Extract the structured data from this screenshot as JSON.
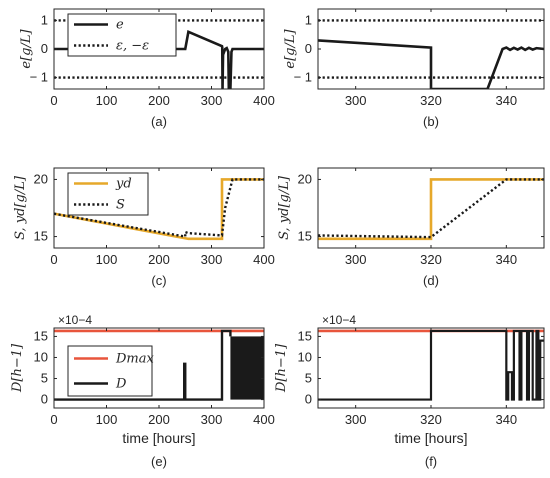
{
  "chart_data": [
    {
      "id": "a",
      "type": "line",
      "caption": "(a)",
      "ylabel": "e[g/L]",
      "xlabel": "",
      "xlim": [
        0,
        400
      ],
      "ylim": [
        -1.4,
        1.4
      ],
      "xticks": [
        0,
        100,
        200,
        300,
        400
      ],
      "yticks": [
        -1,
        0,
        1
      ],
      "legend": {
        "placement": "top-left",
        "entries": [
          "e",
          "ε, −ε"
        ]
      },
      "series": [
        {
          "name": "e",
          "style": "solid",
          "color": "#1a1a1a",
          "width": 2.6,
          "x": [
            0,
            250,
            256,
            320,
            320.5,
            321,
            322,
            326,
            329,
            332,
            333,
            334,
            336,
            338,
            340,
            400
          ],
          "y": [
            0,
            0,
            0.6,
            0.1,
            0.05,
            -1.4,
            -0.2,
            0,
            0.03,
            -0.1,
            -1.4,
            -1.4,
            -1.4,
            -0.1,
            0,
            0
          ]
        },
        {
          "name": "ε, −ε",
          "style": "dotted",
          "color": "#1a1a1a",
          "width": 2.4,
          "x": [
            0,
            400
          ],
          "y": [
            1,
            1
          ]
        },
        {
          "name": "",
          "style": "dotted",
          "color": "#1a1a1a",
          "width": 2.4,
          "x": [
            0,
            400
          ],
          "y": [
            -1,
            -1
          ]
        }
      ]
    },
    {
      "id": "b",
      "type": "line",
      "caption": "(b)",
      "ylabel": "e[g/L]",
      "xlabel": "",
      "xlim": [
        290,
        350
      ],
      "ylim": [
        -1.4,
        1.4
      ],
      "xticks": [
        300,
        320,
        340
      ],
      "yticks": [
        -1,
        0,
        1
      ],
      "series": [
        {
          "name": "e",
          "style": "solid",
          "color": "#1a1a1a",
          "width": 2.6,
          "x": [
            290,
            320,
            320,
            320.2,
            335,
            339,
            340,
            341,
            342,
            343,
            344,
            345,
            346,
            347,
            348,
            350
          ],
          "y": [
            0.3,
            0.05,
            -1.4,
            -1.4,
            -1.4,
            0,
            0.05,
            -0.03,
            0.04,
            -0.02,
            0.05,
            -0.03,
            0.04,
            -0.02,
            0.03,
            0
          ]
        },
        {
          "name": "",
          "style": "dotted",
          "color": "#1a1a1a",
          "width": 2.4,
          "x": [
            290,
            350
          ],
          "y": [
            1,
            1
          ]
        },
        {
          "name": "",
          "style": "dotted",
          "color": "#1a1a1a",
          "width": 2.4,
          "x": [
            290,
            350
          ],
          "y": [
            -1,
            -1
          ]
        }
      ]
    },
    {
      "id": "c",
      "type": "line",
      "caption": "(c)",
      "ylabel": "S, yd[g/L]",
      "xlabel": "",
      "xlim": [
        0,
        400
      ],
      "ylim": [
        14,
        21
      ],
      "xticks": [
        0,
        100,
        200,
        300,
        400
      ],
      "yticks": [
        15,
        20
      ],
      "legend": {
        "placement": "top-left",
        "entries": [
          "yd",
          "S"
        ]
      },
      "series": [
        {
          "name": "yd",
          "style": "solid",
          "color": "#e6a82a",
          "width": 2.6,
          "x": [
            0,
            256,
            320,
            320,
            400
          ],
          "y": [
            17,
            14.8,
            14.8,
            20,
            20
          ]
        },
        {
          "name": "S",
          "style": "dotted",
          "color": "#1a1a1a",
          "width": 2.4,
          "x": [
            0,
            250,
            250,
            256,
            320,
            326,
            340,
            400
          ],
          "y": [
            17,
            15,
            15.4,
            15.3,
            15.1,
            17.5,
            20,
            20
          ]
        }
      ]
    },
    {
      "id": "d",
      "type": "line",
      "caption": "(d)",
      "ylabel": "S, yd[g/L]",
      "xlabel": "",
      "xlim": [
        290,
        350
      ],
      "ylim": [
        14,
        21
      ],
      "xticks": [
        300,
        320,
        340
      ],
      "yticks": [
        15,
        20
      ],
      "series": [
        {
          "name": "yd",
          "style": "solid",
          "color": "#e6a82a",
          "width": 2.6,
          "x": [
            290,
            320,
            320,
            350
          ],
          "y": [
            14.8,
            14.8,
            20,
            20
          ]
        },
        {
          "name": "S",
          "style": "dotted",
          "color": "#1a1a1a",
          "width": 2.4,
          "x": [
            290,
            320,
            340,
            350
          ],
          "y": [
            15.1,
            14.95,
            20,
            20
          ]
        }
      ]
    },
    {
      "id": "e",
      "type": "line",
      "caption": "(e)",
      "ylabel": "D[h−1]",
      "xlabel": "time [hours]",
      "xlim": [
        0,
        400
      ],
      "ylim": [
        -2,
        17
      ],
      "xticks": [
        0,
        100,
        200,
        300,
        400
      ],
      "yticks": [
        0,
        5,
        10,
        15
      ],
      "yexponent": "×10−4",
      "legend": {
        "placement": "bottom-left",
        "entries": [
          "Dmax",
          "D"
        ]
      },
      "series": [
        {
          "name": "Dmax",
          "style": "solid",
          "color": "#e8553c",
          "width": 2.6,
          "x": [
            0,
            400
          ],
          "y": [
            16.3,
            16.3
          ]
        },
        {
          "name": "D",
          "style": "solid",
          "color": "#1a1a1a",
          "width": 2.4,
          "x": [
            0,
            248,
            248,
            250,
            250,
            320,
            320,
            336,
            336
          ],
          "y": [
            0,
            0,
            8.5,
            8.5,
            0,
            0,
            16.3,
            16.3,
            15
          ]
        },
        {
          "name": "",
          "style": "band",
          "color": "#1a1a1a",
          "width": 0,
          "x": [
            336,
            400
          ],
          "y": [
            0,
            15
          ]
        }
      ]
    },
    {
      "id": "f",
      "type": "line",
      "caption": "(f)",
      "ylabel": "D[h−1]",
      "xlabel": "time [hours]",
      "xlim": [
        290,
        350
      ],
      "ylim": [
        -2,
        17
      ],
      "xticks": [
        300,
        320,
        340
      ],
      "yticks": [
        0,
        5,
        10,
        15
      ],
      "yexponent": "×10−4",
      "series": [
        {
          "name": "Dmax",
          "style": "solid",
          "color": "#e8553c",
          "width": 2.6,
          "x": [
            290,
            350
          ],
          "y": [
            16.3,
            16.3
          ]
        },
        {
          "name": "D",
          "style": "solid",
          "color": "#1a1a1a",
          "width": 2.2,
          "x": [
            290,
            320,
            320,
            340,
            340,
            340.5,
            340.5,
            341.5,
            341.5,
            342,
            342,
            343.5,
            343.5,
            344,
            344,
            345.5,
            345.5,
            346,
            346,
            347,
            347,
            348,
            348,
            348.5,
            348.5,
            349,
            349,
            350
          ],
          "y": [
            0,
            0,
            16.3,
            16.3,
            0,
            0,
            6.5,
            6.5,
            0,
            0,
            16.3,
            16.3,
            0,
            0,
            16.3,
            16.3,
            0,
            0,
            16.3,
            16.3,
            0,
            0,
            16.3,
            16.3,
            0,
            0,
            14,
            14
          ]
        }
      ]
    }
  ]
}
